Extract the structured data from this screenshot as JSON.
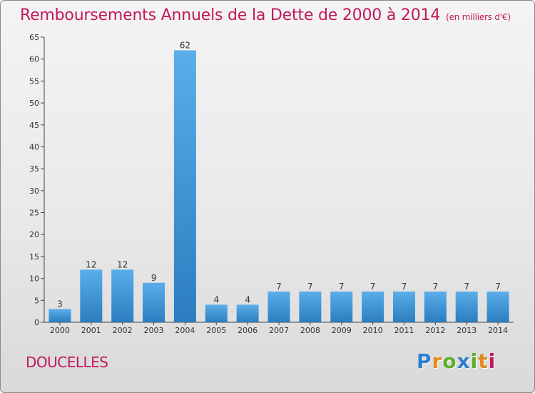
{
  "title": "Remboursements Annuels de la Dette de 2000 à 2014",
  "unit_note": "(en milliers d'€)",
  "commune": "DOUCELLES",
  "logo": {
    "text": "Proxiti",
    "letters": [
      "P",
      "r",
      "o",
      "x",
      "i",
      "t",
      "i"
    ]
  },
  "colors": {
    "accent": "#c2185b",
    "bar_top": "#5aaeea",
    "bar_bottom": "#2b7dbf"
  },
  "chart_data": {
    "type": "bar",
    "title": "Remboursements Annuels de la Dette de 2000 à 2014",
    "xlabel": "",
    "ylabel": "",
    "categories": [
      "2000",
      "2001",
      "2002",
      "2003",
      "2004",
      "2005",
      "2006",
      "2007",
      "2008",
      "2009",
      "2010",
      "2011",
      "2012",
      "2013",
      "2014"
    ],
    "values": [
      3,
      12,
      12,
      9,
      62,
      4,
      4,
      7,
      7,
      7,
      7,
      7,
      7,
      7,
      7
    ],
    "ylim": [
      0,
      65
    ],
    "yticks": [
      0,
      5,
      10,
      15,
      20,
      25,
      30,
      35,
      40,
      45,
      50,
      55,
      60,
      65
    ],
    "grid": false,
    "legend": "none"
  }
}
